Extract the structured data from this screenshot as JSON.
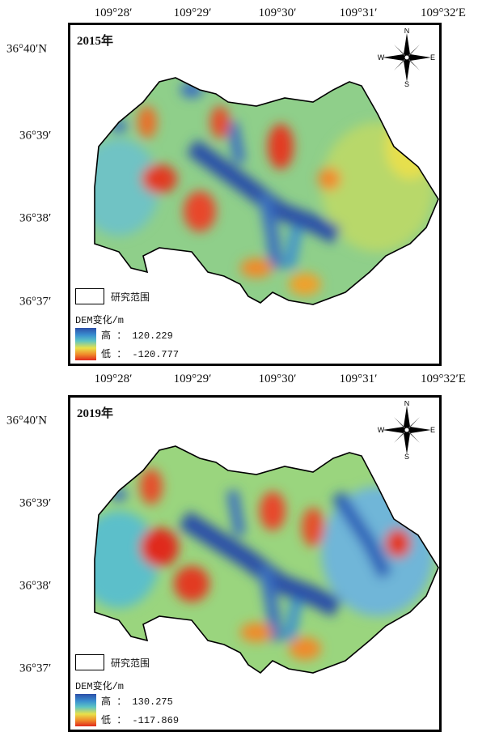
{
  "top_ticks": [
    "109°28′",
    "109°29′",
    "109°30′",
    "109°31′",
    "109°32′E"
  ],
  "left_ticks": [
    "36°40′N",
    "36°39′",
    "36°38′",
    "36°37′"
  ],
  "compass": {
    "n": "N",
    "s": "S",
    "e": "E",
    "w": "W"
  },
  "legend": {
    "boundary_label": "研究范围",
    "dem_title": "DEM变化/m",
    "high_prefix": "高",
    "low_prefix": "低"
  },
  "panels": [
    {
      "year": "2015年",
      "high_value": "： 120.229",
      "low_value": "： -120.777"
    },
    {
      "year": "2019年",
      "high_value": "： 130.275",
      "low_value": "： -117.869"
    }
  ],
  "colors": {
    "high": "#2c4fa8",
    "mid": "#e8e14a",
    "low": "#e02a1e",
    "boundary": "#000000"
  }
}
